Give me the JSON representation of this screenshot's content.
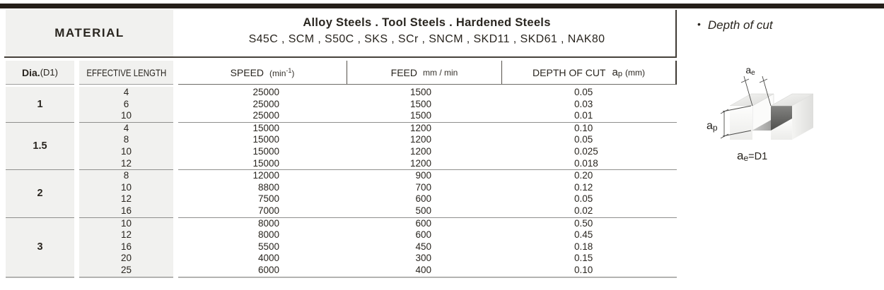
{
  "material_header": {
    "label": "MATERIAL",
    "families": "Alloy  Steels . Tool Steels . Hardened Steels",
    "grades": "S45C , SCM , S50C , SKS , SCr , SNCM , SKD11 , SKD61 , NAK80"
  },
  "columns": {
    "dia_bold": "Dia.",
    "dia_paren": "(D1)",
    "effective_length": "EFFECTIVE LENGTH",
    "speed_label": "SPEED",
    "speed_unit_pre": "(min",
    "speed_unit_sup": "-1",
    "speed_unit_post": ")",
    "feed_label": "FEED",
    "feed_unit": "mm / min",
    "depth_label": "DEPTH OF CUT",
    "depth_sym": "a",
    "depth_sym_sub": "p",
    "depth_unit": "(mm)"
  },
  "table": {
    "groups": [
      {
        "dia": "1",
        "rows": [
          {
            "length": "4",
            "speed": "25000",
            "feed": "1500",
            "depth": "0.05"
          },
          {
            "length": "6",
            "speed": "25000",
            "feed": "1500",
            "depth": "0.03"
          },
          {
            "length": "10",
            "speed": "25000",
            "feed": "1500",
            "depth": "0.01"
          }
        ]
      },
      {
        "dia": "1.5",
        "rows": [
          {
            "length": "4",
            "speed": "15000",
            "feed": "1200",
            "depth": "0.10"
          },
          {
            "length": "8",
            "speed": "15000",
            "feed": "1200",
            "depth": "0.05"
          },
          {
            "length": "10",
            "speed": "15000",
            "feed": "1200",
            "depth": "0.025"
          },
          {
            "length": "12",
            "speed": "15000",
            "feed": "1200",
            "depth": "0.018"
          }
        ]
      },
      {
        "dia": "2",
        "rows": [
          {
            "length": "8",
            "speed": "12000",
            "feed": "900",
            "depth": "0.20"
          },
          {
            "length": "10",
            "speed": "8800",
            "feed": "700",
            "depth": "0.12"
          },
          {
            "length": "12",
            "speed": "7500",
            "feed": "600",
            "depth": "0.05"
          },
          {
            "length": "16",
            "speed": "7000",
            "feed": "500",
            "depth": "0.02"
          }
        ]
      },
      {
        "dia": "3",
        "rows": [
          {
            "length": "10",
            "speed": "8000",
            "feed": "600",
            "depth": "0.50"
          },
          {
            "length": "12",
            "speed": "8000",
            "feed": "600",
            "depth": "0.45"
          },
          {
            "length": "16",
            "speed": "5500",
            "feed": "450",
            "depth": "0.18"
          },
          {
            "length": "20",
            "speed": "4000",
            "feed": "300",
            "depth": "0.15"
          },
          {
            "length": "25",
            "speed": "6000",
            "feed": "400",
            "depth": "0.10"
          }
        ]
      }
    ]
  },
  "side_panel": {
    "bullet": "•",
    "title": "Depth of cut",
    "ae_main": "a",
    "ae_sub": "e",
    "ap_main": "a",
    "ap_sub": "p",
    "eq_main": "a",
    "eq_sub": "e",
    "eq_rest": "=D1"
  },
  "colors": {
    "top_bar": "#251f19",
    "cell_gray": "#f1f1ef",
    "heavy_rule": "#46413b",
    "group_rule": "#8f8f8d",
    "slot_wall_dark": "#50504e"
  }
}
